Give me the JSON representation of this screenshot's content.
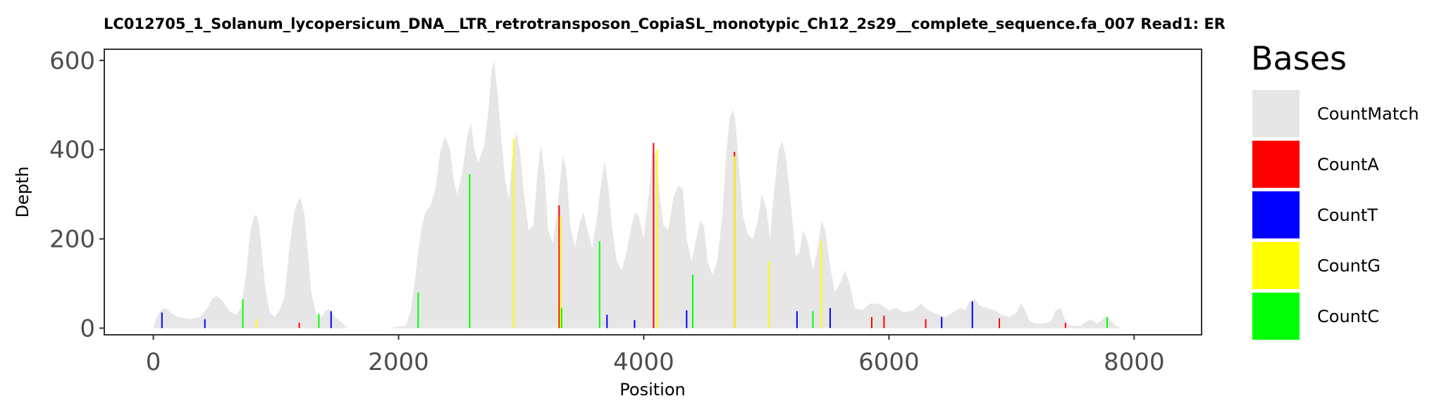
{
  "chart_data": {
    "type": "area",
    "title": "LC012705_1_Solanum_lycopersicum_DNA__LTR_retrotransposon_CopiaSL_monotypic_Ch12_2s29__complete_sequence.fa_007    Read1: ER",
    "xlabel": "Position",
    "ylabel": "Depth",
    "xlim": [
      -400,
      8550
    ],
    "ylim": [
      -15,
      625
    ],
    "x_ticks": [
      0,
      2000,
      4000,
      6000,
      8000
    ],
    "x_tick_labels": [
      "0",
      "2000",
      "4000",
      "6000",
      "8000"
    ],
    "y_ticks": [
      0,
      200,
      400,
      600
    ],
    "y_tick_labels": [
      "0",
      "200",
      "400",
      "600"
    ],
    "grid": false,
    "legend": {
      "title": "Bases",
      "position": "right",
      "entries": [
        {
          "label": "CountMatch",
          "color": "#e6e6e6"
        },
        {
          "label": "CountA",
          "color": "#ff0000"
        },
        {
          "label": "CountT",
          "color": "#0000ff"
        },
        {
          "label": "CountG",
          "color": "#ffff00"
        },
        {
          "label": "CountC",
          "color": "#00ff00"
        }
      ]
    },
    "match_depth": {
      "name": "CountMatch",
      "color": "#e6e6e6",
      "points": [
        [
          0,
          0
        ],
        [
          20,
          20
        ],
        [
          60,
          40
        ],
        [
          100,
          45
        ],
        [
          140,
          35
        ],
        [
          200,
          25
        ],
        [
          300,
          20
        ],
        [
          380,
          25
        ],
        [
          440,
          45
        ],
        [
          480,
          65
        ],
        [
          520,
          72
        ],
        [
          560,
          62
        ],
        [
          620,
          38
        ],
        [
          680,
          30
        ],
        [
          720,
          50
        ],
        [
          760,
          130
        ],
        [
          790,
          215
        ],
        [
          820,
          250
        ],
        [
          840,
          255
        ],
        [
          860,
          235
        ],
        [
          880,
          185
        ],
        [
          910,
          95
        ],
        [
          950,
          35
        ],
        [
          990,
          25
        ],
        [
          1030,
          40
        ],
        [
          1070,
          70
        ],
        [
          1110,
          180
        ],
        [
          1150,
          260
        ],
        [
          1180,
          285
        ],
        [
          1200,
          292
        ],
        [
          1230,
          260
        ],
        [
          1260,
          170
        ],
        [
          1290,
          75
        ],
        [
          1330,
          30
        ],
        [
          1370,
          25
        ],
        [
          1410,
          40
        ],
        [
          1440,
          42
        ],
        [
          1480,
          25
        ],
        [
          1530,
          15
        ],
        [
          1580,
          0
        ],
        [
          1900,
          0
        ],
        [
          2060,
          5
        ],
        [
          2100,
          40
        ],
        [
          2130,
          100
        ],
        [
          2160,
          170
        ],
        [
          2190,
          230
        ],
        [
          2220,
          260
        ],
        [
          2260,
          275
        ],
        [
          2300,
          310
        ],
        [
          2340,
          395
        ],
        [
          2380,
          430
        ],
        [
          2420,
          400
        ],
        [
          2450,
          330
        ],
        [
          2480,
          300
        ],
        [
          2520,
          350
        ],
        [
          2560,
          430
        ],
        [
          2590,
          460
        ],
        [
          2620,
          400
        ],
        [
          2650,
          370
        ],
        [
          2700,
          410
        ],
        [
          2730,
          480
        ],
        [
          2760,
          580
        ],
        [
          2780,
          600
        ],
        [
          2810,
          520
        ],
        [
          2840,
          420
        ],
        [
          2870,
          330
        ],
        [
          2900,
          290
        ],
        [
          2930,
          390
        ],
        [
          2960,
          440
        ],
        [
          2990,
          400
        ],
        [
          3020,
          310
        ],
        [
          3060,
          220
        ],
        [
          3100,
          230
        ],
        [
          3130,
          340
        ],
        [
          3160,
          410
        ],
        [
          3190,
          350
        ],
        [
          3220,
          220
        ],
        [
          3260,
          190
        ],
        [
          3300,
          280
        ],
        [
          3340,
          390
        ],
        [
          3370,
          350
        ],
        [
          3400,
          230
        ],
        [
          3440,
          180
        ],
        [
          3480,
          240
        ],
        [
          3510,
          260
        ],
        [
          3540,
          220
        ],
        [
          3580,
          180
        ],
        [
          3620,
          250
        ],
        [
          3650,
          320
        ],
        [
          3680,
          375
        ],
        [
          3710,
          320
        ],
        [
          3740,
          230
        ],
        [
          3780,
          150
        ],
        [
          3820,
          130
        ],
        [
          3860,
          170
        ],
        [
          3900,
          230
        ],
        [
          3930,
          260
        ],
        [
          3960,
          250
        ],
        [
          4000,
          200
        ],
        [
          4040,
          300
        ],
        [
          4070,
          395
        ],
        [
          4100,
          390
        ],
        [
          4130,
          300
        ],
        [
          4160,
          230
        ],
        [
          4200,
          220
        ],
        [
          4240,
          290
        ],
        [
          4280,
          320
        ],
        [
          4320,
          310
        ],
        [
          4350,
          200
        ],
        [
          4390,
          150
        ],
        [
          4420,
          190
        ],
        [
          4460,
          240
        ],
        [
          4490,
          230
        ],
        [
          4520,
          150
        ],
        [
          4560,
          120
        ],
        [
          4600,
          150
        ],
        [
          4640,
          250
        ],
        [
          4670,
          380
        ],
        [
          4700,
          470
        ],
        [
          4730,
          490
        ],
        [
          4750,
          460
        ],
        [
          4780,
          350
        ],
        [
          4810,
          250
        ],
        [
          4850,
          210
        ],
        [
          4890,
          200
        ],
        [
          4930,
          240
        ],
        [
          4960,
          300
        ],
        [
          5000,
          270
        ],
        [
          5030,
          200
        ],
        [
          5060,
          300
        ],
        [
          5100,
          400
        ],
        [
          5130,
          420
        ],
        [
          5160,
          380
        ],
        [
          5200,
          280
        ],
        [
          5240,
          160
        ],
        [
          5270,
          170
        ],
        [
          5300,
          220
        ],
        [
          5340,
          190
        ],
        [
          5380,
          130
        ],
        [
          5420,
          180
        ],
        [
          5450,
          240
        ],
        [
          5480,
          220
        ],
        [
          5520,
          140
        ],
        [
          5560,
          80
        ],
        [
          5600,
          100
        ],
        [
          5640,
          130
        ],
        [
          5680,
          100
        ],
        [
          5720,
          45
        ],
        [
          5780,
          40
        ],
        [
          5840,
          55
        ],
        [
          5900,
          55
        ],
        [
          5950,
          50
        ],
        [
          6000,
          40
        ],
        [
          6060,
          45
        ],
        [
          6120,
          35
        ],
        [
          6200,
          40
        ],
        [
          6260,
          55
        ],
        [
          6320,
          40
        ],
        [
          6400,
          30
        ],
        [
          6460,
          25
        ],
        [
          6520,
          35
        ],
        [
          6580,
          45
        ],
        [
          6620,
          40
        ],
        [
          6660,
          60
        ],
        [
          6700,
          65
        ],
        [
          6740,
          50
        ],
        [
          6800,
          45
        ],
        [
          6860,
          40
        ],
        [
          6920,
          30
        ],
        [
          6980,
          25
        ],
        [
          7040,
          35
        ],
        [
          7080,
          55
        ],
        [
          7110,
          40
        ],
        [
          7150,
          15
        ],
        [
          7200,
          10
        ],
        [
          7260,
          10
        ],
        [
          7320,
          15
        ],
        [
          7360,
          40
        ],
        [
          7400,
          45
        ],
        [
          7440,
          15
        ],
        [
          7480,
          5
        ],
        [
          7560,
          5
        ],
        [
          7640,
          20
        ],
        [
          7700,
          10
        ],
        [
          7760,
          25
        ],
        [
          7800,
          20
        ],
        [
          7850,
          5
        ],
        [
          7900,
          0
        ],
        [
          8100,
          0
        ]
      ]
    },
    "base_counts": {
      "CountA": [
        [
          1190,
          12
        ],
        [
          3310,
          275
        ],
        [
          4080,
          415
        ],
        [
          4740,
          395
        ],
        [
          5860,
          25
        ],
        [
          5960,
          28
        ],
        [
          6300,
          20
        ],
        [
          6900,
          22
        ],
        [
          7440,
          12
        ]
      ],
      "CountT": [
        [
          70,
          35
        ],
        [
          420,
          20
        ],
        [
          1450,
          38
        ],
        [
          3700,
          30
        ],
        [
          3925,
          18
        ],
        [
          4350,
          40
        ],
        [
          5250,
          38
        ],
        [
          5520,
          45
        ],
        [
          6430,
          25
        ],
        [
          6680,
          60
        ]
      ],
      "CountG": [
        [
          840,
          20
        ],
        [
          2940,
          425
        ],
        [
          3320,
          250
        ],
        [
          4110,
          400
        ],
        [
          4740,
          385
        ],
        [
          5020,
          150
        ],
        [
          5450,
          195
        ]
      ],
      "CountC": [
        [
          730,
          65
        ],
        [
          1350,
          32
        ],
        [
          2160,
          80
        ],
        [
          2580,
          345
        ],
        [
          3330,
          45
        ],
        [
          3640,
          195
        ],
        [
          4400,
          120
        ],
        [
          5380,
          38
        ],
        [
          7780,
          25
        ]
      ]
    }
  }
}
